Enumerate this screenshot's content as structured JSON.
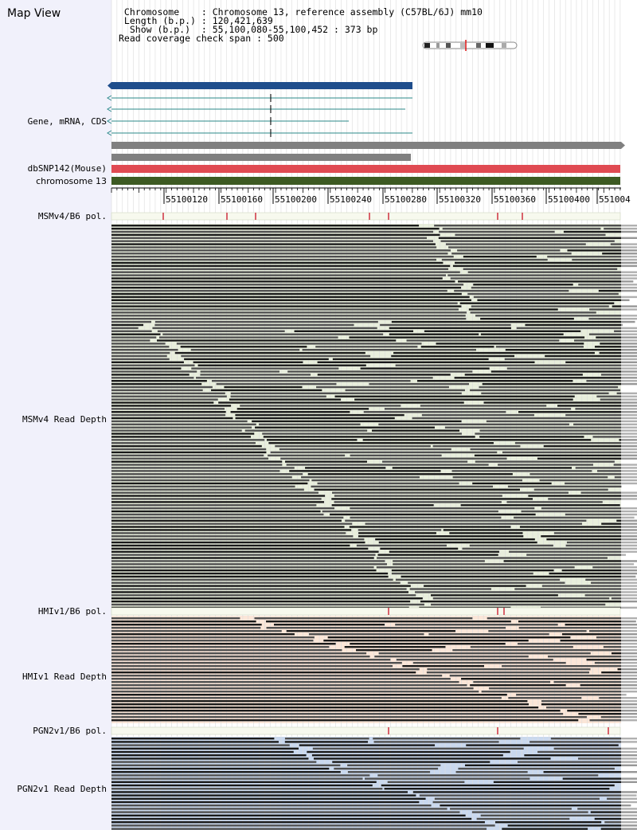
{
  "app": {
    "title": "Map View"
  },
  "header": {
    "lines": [
      " Chromosome    : Chromosome 13, reference assembly (C57BL/6J) mm10",
      " Length (b.p.) : 120,421,639",
      "  Show (b.p.)  : 55,100,080-55,100,452 : 373 bp",
      "Read coverage check span : 500"
    ]
  },
  "tracks": {
    "gene": {
      "label": "Gene, mRNA, CDS"
    },
    "dbsnp": {
      "label": "dbSNP142(Mouse)"
    },
    "chromosome": {
      "label": "chromosome 13"
    },
    "msm_pol": {
      "label": "MSMv4/B6 pol."
    },
    "msm_depth": {
      "label": "MSMv4 Read Depth"
    },
    "hmi_pol": {
      "label": "HMIv1/B6 pol."
    },
    "hmi_depth": {
      "label": "HMIv1 Read Depth"
    },
    "pgn_pol": {
      "label": "PGN2v1/B6 pol."
    },
    "pgn_depth": {
      "label": "PGN2v1 Read Depth"
    }
  },
  "ruler": {
    "labels": [
      "55100120",
      "55100160",
      "55100200",
      "55100240",
      "55100280",
      "55100320",
      "55100360",
      "55100400",
      "551004"
    ]
  },
  "colors": {
    "gene": "#1f4e8c",
    "transcript": "#2b8a8a",
    "cds_bar": "#808080",
    "snp": "#e04a52",
    "chromosome": "#3d5a22",
    "msm_bg": "#e8eedc",
    "hmi_bg": "#fbe6d8",
    "pgn_bg": "#c9d8ee",
    "read": "#505050",
    "read_dark": "#1a1a1a",
    "variant": "#cc2233"
  }
}
